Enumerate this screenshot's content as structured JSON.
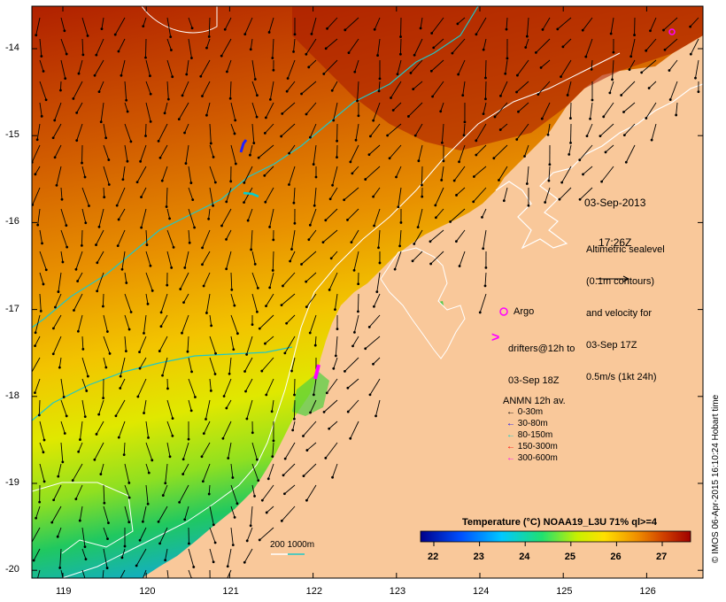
{
  "date_label": {
    "line1": "03-Sep-2013",
    "line2": "17:26Z"
  },
  "altimetry_note": [
    "Altimetric sealevel",
    "(0.1m contours)",
    "and velocity for",
    "03-Sep 17Z",
    "0.5m/s (1kt 24h)"
  ],
  "argo_label": "Argo",
  "drifters_label": [
    "drifters@12h to",
    "03-Sep 18Z"
  ],
  "anmn": {
    "title": "ANMN 12h av.",
    "items": [
      {
        "label": "0-30m",
        "color": "#000000"
      },
      {
        "label": "30-80m",
        "color": "#0000ff"
      },
      {
        "label": "80-150m",
        "color": "#00d0d0"
      },
      {
        "label": "150-300m",
        "color": "#ff0000"
      },
      {
        "label": "300-600m",
        "color": "#ff00ff"
      }
    ]
  },
  "colorbar": {
    "title": "Temperature (°C) NOAA19_L3U 71% ql>=4",
    "ticks": [
      "22",
      "23",
      "24",
      "25",
      "26",
      "27"
    ]
  },
  "scale_label": "200  1000m",
  "credit": "© IMOS 06-Apr-2015 16:10:24 Hobart time",
  "axes": {
    "x_ticks": [
      "119",
      "120",
      "121",
      "122",
      "123",
      "124",
      "125",
      "126"
    ],
    "y_ticks": [
      "-14",
      "-15",
      "-16",
      "-17",
      "-18",
      "-19",
      "-20"
    ]
  },
  "colors": {
    "land": "#f9c89a",
    "isobath_200": "#ffffff",
    "isobath_1000": "#1ec8c8",
    "argo": "#ff00ff"
  }
}
